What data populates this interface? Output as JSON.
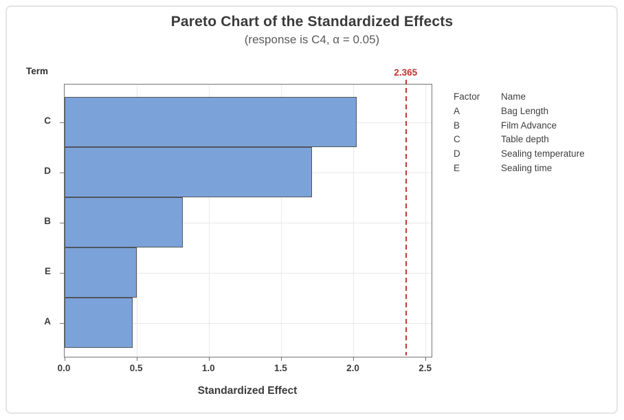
{
  "figure": {
    "title": "Pareto Chart of the Standardized Effects",
    "subtitle": "(response is C4, α = 0.05)",
    "term_label": "Term",
    "xlabel": "Standardized Effect"
  },
  "legend": {
    "header": {
      "factor": "Factor",
      "name": "Name"
    },
    "rows": [
      {
        "factor": "A",
        "name": "Bag Length"
      },
      {
        "factor": "B",
        "name": "Film Advance"
      },
      {
        "factor": "C",
        "name": "Table depth"
      },
      {
        "factor": "D",
        "name": "Sealing temperature"
      },
      {
        "factor": "E",
        "name": "Sealing time"
      }
    ]
  },
  "chart_data": {
    "type": "bar",
    "orientation": "horizontal",
    "title": "Pareto Chart of the Standardized Effects",
    "subtitle": "(response is C4, α = 0.05)",
    "xlabel": "Standardized Effect",
    "ylabel": "Term",
    "categories": [
      "C",
      "D",
      "B",
      "E",
      "A"
    ],
    "values": [
      2.02,
      1.71,
      0.82,
      0.5,
      0.47
    ],
    "reference_line": {
      "value": 2.365,
      "label": "2.365"
    },
    "x_ticks": [
      0.0,
      0.5,
      1.0,
      1.5,
      2.0,
      2.5
    ],
    "x_tick_labels": [
      "0.0",
      "0.5",
      "1.0",
      "1.5",
      "2.0",
      "2.5"
    ],
    "xlim": [
      0,
      2.54
    ],
    "grid": true,
    "legend_position": "right",
    "colors": {
      "bar_fill": "#7CA3D9",
      "bar_border": "#50555B",
      "reference": "#C2342E",
      "grid": "#E8E8E8",
      "axis": "#747474"
    }
  }
}
